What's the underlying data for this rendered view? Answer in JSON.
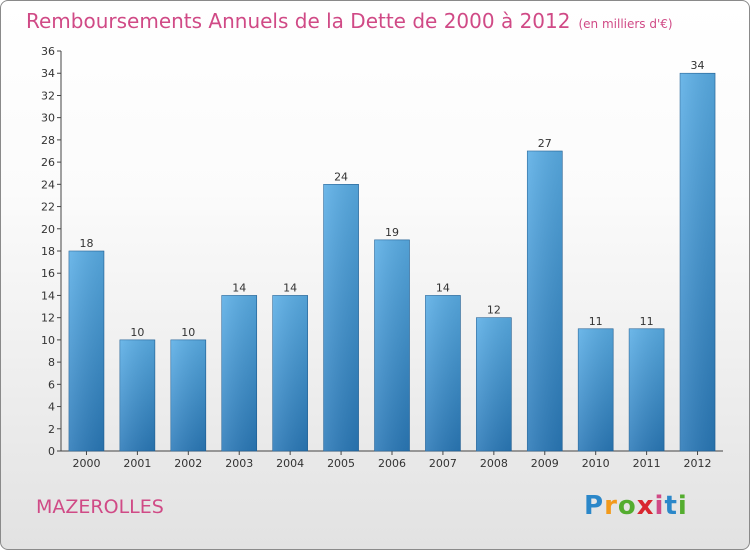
{
  "header": {
    "title": "Remboursements Annuels de la Dette de 2000 à 2012",
    "unit": "(en milliers d'€)"
  },
  "footer": {
    "commune": "MAZEROLLES",
    "logo_text": "Proxiti",
    "logo_letters": [
      "P",
      "r",
      "o",
      "x",
      "i",
      "t",
      "i"
    ]
  },
  "colors": {
    "title": "#d04a86",
    "bar_top": "#5aaee6",
    "bar_bottom": "#2a79b8"
  },
  "chart_data": {
    "type": "bar",
    "title": "Remboursements Annuels de la Dette de 2000 à 2012",
    "xlabel": "",
    "ylabel": "",
    "categories": [
      "2000",
      "2001",
      "2002",
      "2003",
      "2004",
      "2005",
      "2006",
      "2007",
      "2008",
      "2009",
      "2010",
      "2011",
      "2012"
    ],
    "values": [
      18,
      10,
      10,
      14,
      14,
      24,
      19,
      14,
      12,
      27,
      11,
      11,
      34
    ],
    "ylim": [
      0,
      36
    ],
    "yticks": [
      0,
      2,
      4,
      6,
      8,
      10,
      12,
      14,
      16,
      18,
      20,
      22,
      24,
      26,
      28,
      30,
      32,
      34,
      36
    ],
    "grid": false,
    "legend": "none"
  }
}
